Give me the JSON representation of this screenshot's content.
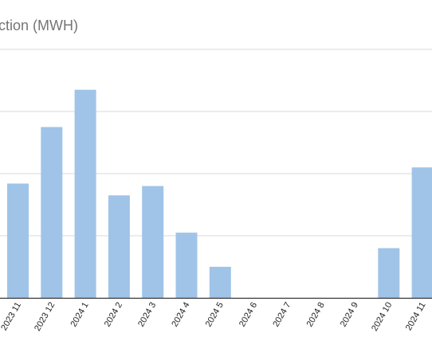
{
  "chart_data": {
    "type": "bar",
    "title": "ction (MWH)",
    "xlabel": "",
    "ylabel": "",
    "categories": [
      "2023 11",
      "2023 12",
      "2024 1",
      "2024 2",
      "2024 3",
      "2024 4",
      "2024 5",
      "2024 6",
      "2024 7",
      "2024 8",
      "2024 9",
      "2024 10",
      "2024 11"
    ],
    "values": [
      1.84,
      2.75,
      3.35,
      1.65,
      1.8,
      1.05,
      0.5,
      0,
      0,
      0,
      0,
      0.8,
      2.1
    ],
    "ylim": [
      0,
      4
    ],
    "grid": true,
    "legend": "none",
    "colors": {
      "bar": "#a0c4e8",
      "grid": "#d9d9d9",
      "axis": "#333333",
      "title": "#757575",
      "background": "#ffffff"
    }
  }
}
